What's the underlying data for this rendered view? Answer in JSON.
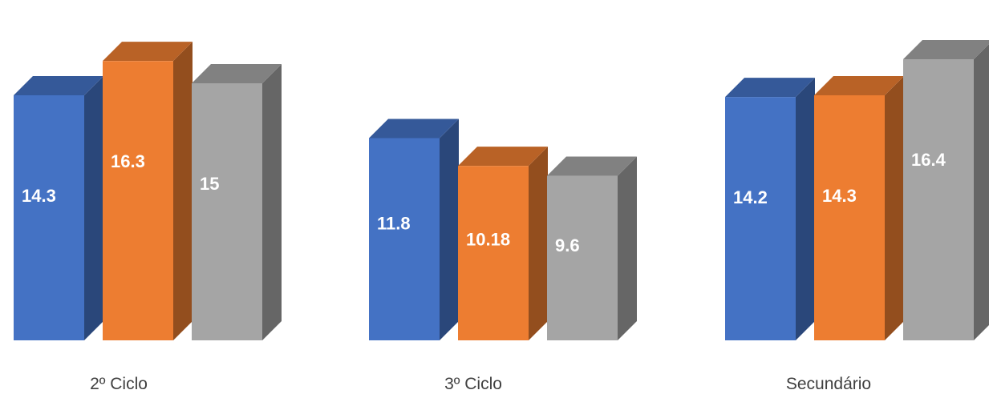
{
  "chart_data": {
    "type": "bar",
    "categories": [
      "2º Ciclo",
      "3º Ciclo",
      "Secundário"
    ],
    "series": [
      {
        "values": [
          14.3,
          11.8,
          14.2
        ],
        "color": "#4472c4"
      },
      {
        "values": [
          16.3,
          10.18,
          14.3
        ],
        "color": "#ed7d31"
      },
      {
        "values": [
          15,
          9.6,
          16.4
        ],
        "color": "#a5a5a5"
      }
    ],
    "data_labels": [
      [
        "14.3",
        "11.8",
        "14.2"
      ],
      [
        "16.3",
        "10.18",
        "14.3"
      ],
      [
        "15",
        "9.6",
        "16.4"
      ]
    ],
    "style": "3d-column",
    "axes_visible": false,
    "grid": false,
    "legend": "none"
  }
}
